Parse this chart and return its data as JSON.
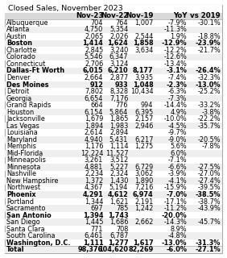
{
  "title": "Closed Sales, November 2023",
  "columns": [
    "",
    "Nov-23",
    "Nov-22",
    "Nov-19",
    "YoY",
    "vs 2019"
  ],
  "rows": [
    [
      "Albuquerque",
      "704",
      "764",
      "1,007",
      "-7.9%",
      "-30.1%"
    ],
    [
      "Atlanta",
      "4,750",
      "5,354",
      "",
      "-11.3%",
      ""
    ],
    [
      "Austin",
      "2,065",
      "2,026",
      "2,544",
      "1.9%",
      "-18.8%"
    ],
    [
      "Boston",
      "1,414",
      "1,624",
      "1,858",
      "-12.9%",
      "-23.9%"
    ],
    [
      "Charlotte",
      "2,845",
      "3,240",
      "3,634",
      "-12.2%",
      "-21.7%"
    ],
    [
      "Colorado",
      "5,546",
      "6,347",
      "",
      "-12.6%",
      ""
    ],
    [
      "Connecticut",
      "2,706",
      "3,124",
      "",
      "-13.4%",
      ""
    ],
    [
      "Dallas-Ft Worth",
      "6,015",
      "6,210",
      "8,177",
      "-3.1%",
      "-26.4%"
    ],
    [
      "Denver",
      "2,664",
      "2,877",
      "3,935",
      "-7.4%",
      "-32.3%"
    ],
    [
      "Des Moines",
      "912",
      "933",
      "1,048",
      "-2.3%",
      "-13.0%"
    ],
    [
      "Detroit",
      "7,802",
      "8,328",
      "10,434",
      "-6.3%",
      "-25.2%"
    ],
    [
      "Georgia",
      "6,654",
      "7,176",
      "",
      "-7.3%",
      ""
    ],
    [
      "Grand Rapids",
      "664",
      "776",
      "994",
      "-14.4%",
      "-33.2%"
    ],
    [
      "Houston",
      "6,154",
      "5,864",
      "6,395",
      "4.9%",
      "-3.8%"
    ],
    [
      "Jacksonville",
      "1,679",
      "1,865",
      "2,157",
      "-10.0%",
      "-22.2%"
    ],
    [
      "Las Vegas",
      "1,894",
      "1,983",
      "2,946",
      "-4.5%",
      "-35.7%"
    ],
    [
      "Louisiana",
      "2,614",
      "2,894",
      "",
      "-9.7%",
      ""
    ],
    [
      "Maryland",
      "4,940",
      "5,431",
      "6,217",
      "-9.0%",
      "-20.5%"
    ],
    [
      "Memphis",
      "1,176",
      "1,114",
      "1,275",
      "5.6%",
      "-7.8%"
    ],
    [
      "Mid-Florida",
      "12,224",
      "11,527",
      "",
      "6.0%",
      ""
    ],
    [
      "Minneapolis",
      "3,261",
      "3,512",
      "",
      "-7.1%",
      ""
    ],
    [
      "Minnesota",
      "4,881",
      "5,227",
      "6,729",
      "-6.6%",
      "-27.5%"
    ],
    [
      "Nashville",
      "2,234",
      "2,324",
      "3,062",
      "-3.9%",
      "-27.0%"
    ],
    [
      "New Hampshire",
      "1,372",
      "1,430",
      "1,890",
      "-4.1%",
      "-27.4%"
    ],
    [
      "Northwest",
      "4,367",
      "5,194",
      "7,216",
      "-15.9%",
      "-39.5%"
    ],
    [
      "Phoenix",
      "4,291",
      "4,612",
      "6,974",
      "-7.0%",
      "-38.5%"
    ],
    [
      "Portland",
      "1,344",
      "1,621",
      "2,191",
      "-17.1%",
      "-38.7%"
    ],
    [
      "Sacramento",
      "697",
      "785",
      "1,242",
      "-11.2%",
      "-43.9%"
    ],
    [
      "San Antonio",
      "1,394",
      "1,743",
      "",
      "-20.0%",
      ""
    ],
    [
      "San Diego",
      "1,445",
      "1,686",
      "2,662",
      "-14.3%",
      "-45.7%"
    ],
    [
      "Santa Clara",
      "771",
      "708",
      "",
      "8.9%",
      ""
    ],
    [
      "South Carolina",
      "6,461",
      "6,787",
      "",
      "-4.8%",
      ""
    ],
    [
      "Washington, D.C.",
      "1,111",
      "1,277",
      "1,617",
      "-13.0%",
      "-31.3%"
    ],
    [
      "Total",
      "98,376",
      "104,620",
      "82,269",
      "-6.0%",
      "-27.1%"
    ]
  ],
  "bold_rows": [
    "Boston",
    "Dallas-Ft Worth",
    "Des Moines",
    "Phoenix",
    "San Antonio",
    "Washington, D.C.",
    "Total"
  ],
  "header_bg": "#d9d9d9",
  "alt_row_bg": "#efefef",
  "border_color": "#aaaaaa",
  "title_fontsize": 6.8,
  "header_fontsize": 6.2,
  "cell_fontsize": 5.9
}
